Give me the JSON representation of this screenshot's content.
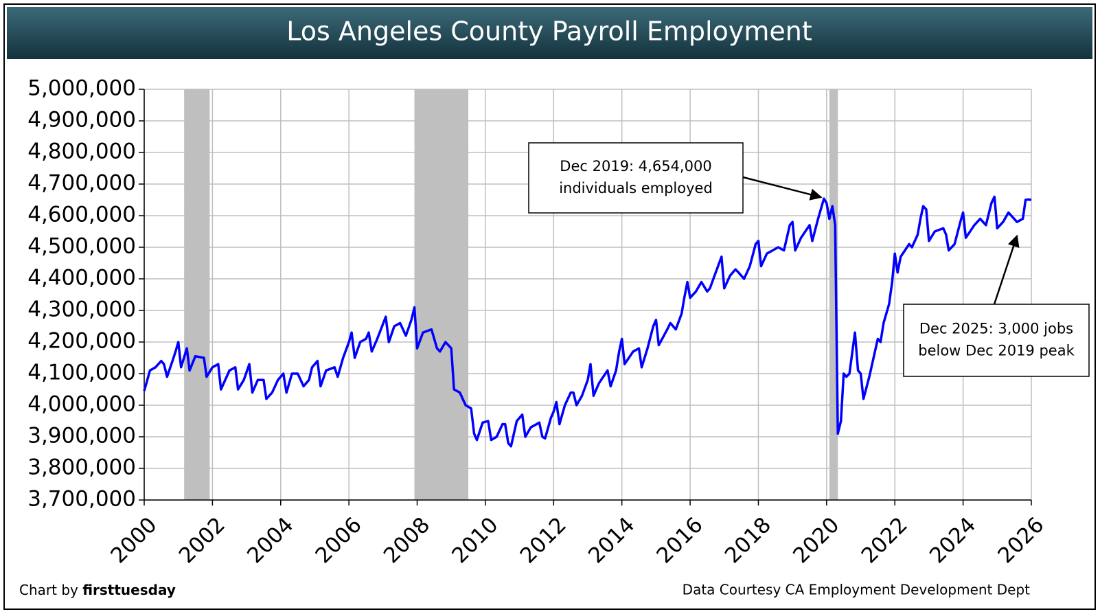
{
  "chart_data": {
    "type": "line",
    "title": "Los Angeles County Payroll Employment",
    "credit_prefix": "Chart by",
    "credit_name": "firsttuesday",
    "source": "Data Courtesy CA Employment Development Dept",
    "color": "#0000ff",
    "grid": true,
    "shaded_regions": [
      [
        2001.17,
        2001.92
      ],
      [
        2007.92,
        2009.5
      ],
      [
        2020.08,
        2020.33
      ]
    ],
    "shade_color": "#bfbfbf",
    "xlim": [
      2000,
      2026
    ],
    "xticks": [
      2000,
      2002,
      2004,
      2006,
      2008,
      2010,
      2012,
      2014,
      2016,
      2018,
      2020,
      2022,
      2024,
      2026
    ],
    "ylim": [
      3700000,
      5000000
    ],
    "yticks": [
      {
        "value": 3700000,
        "label": "3,700,000"
      },
      {
        "value": 3800000,
        "label": "3,800,000"
      },
      {
        "value": 3900000,
        "label": "3,900,000"
      },
      {
        "value": 4000000,
        "label": "4,000,000"
      },
      {
        "value": 4100000,
        "label": "4,100,000"
      },
      {
        "value": 4200000,
        "label": "4,200,000"
      },
      {
        "value": 4300000,
        "label": "4,300,000"
      },
      {
        "value": 4400000,
        "label": "4,400,000"
      },
      {
        "value": 4500000,
        "label": "4,500,000"
      },
      {
        "value": 4600000,
        "label": "4,600,000"
      },
      {
        "value": 4700000,
        "label": "4,700,000"
      },
      {
        "value": 4800000,
        "label": "4,800,000"
      },
      {
        "value": 4900000,
        "label": "4,900,000"
      },
      {
        "value": 5000000,
        "label": "5,000,000"
      }
    ],
    "x": [
      2000.0,
      2000.17,
      2000.33,
      2000.5,
      2000.58,
      2000.67,
      2000.83,
      2000.92,
      2001.0,
      2001.08,
      2001.25,
      2001.33,
      2001.5,
      2001.75,
      2001.83,
      2002.0,
      2002.17,
      2002.25,
      2002.5,
      2002.67,
      2002.75,
      2002.92,
      2003.08,
      2003.17,
      2003.33,
      2003.5,
      2003.58,
      2003.75,
      2003.92,
      2004.08,
      2004.17,
      2004.33,
      2004.5,
      2004.67,
      2004.83,
      2004.92,
      2005.08,
      2005.17,
      2005.33,
      2005.58,
      2005.67,
      2005.83,
      2006.0,
      2006.08,
      2006.17,
      2006.33,
      2006.5,
      2006.58,
      2006.67,
      2006.83,
      2007.08,
      2007.17,
      2007.33,
      2007.5,
      2007.67,
      2007.83,
      2007.92,
      2008.0,
      2008.17,
      2008.42,
      2008.58,
      2008.67,
      2008.83,
      2009.0,
      2009.08,
      2009.25,
      2009.42,
      2009.58,
      2009.67,
      2009.75,
      2009.92,
      2010.08,
      2010.17,
      2010.33,
      2010.5,
      2010.58,
      2010.67,
      2010.75,
      2010.92,
      2011.08,
      2011.17,
      2011.33,
      2011.5,
      2011.58,
      2011.67,
      2011.75,
      2011.92,
      2012.0,
      2012.08,
      2012.17,
      2012.33,
      2012.5,
      2012.58,
      2012.67,
      2012.83,
      2013.0,
      2013.08,
      2013.17,
      2013.33,
      2013.58,
      2013.67,
      2013.83,
      2013.92,
      2014.0,
      2014.08,
      2014.33,
      2014.5,
      2014.58,
      2014.75,
      2014.92,
      2015.0,
      2015.08,
      2015.33,
      2015.42,
      2015.58,
      2015.75,
      2015.83,
      2015.92,
      2016.0,
      2016.17,
      2016.33,
      2016.5,
      2016.58,
      2016.75,
      2016.92,
      2017.0,
      2017.17,
      2017.33,
      2017.42,
      2017.58,
      2017.75,
      2017.92,
      2018.0,
      2018.08,
      2018.25,
      2018.42,
      2018.58,
      2018.75,
      2018.92,
      2019.0,
      2019.08,
      2019.25,
      2019.5,
      2019.58,
      2019.75,
      2019.92,
      2020.0,
      2020.08,
      2020.17,
      2020.25,
      2020.33,
      2020.42,
      2020.5,
      2020.58,
      2020.67,
      2020.83,
      2020.92,
      2021.0,
      2021.08,
      2021.25,
      2021.5,
      2021.58,
      2021.67,
      2021.83,
      2021.92,
      2022.0,
      2022.08,
      2022.17,
      2022.42,
      2022.5,
      2022.67,
      2022.75,
      2022.83,
      2022.92,
      2023.0,
      2023.17,
      2023.42,
      2023.5,
      2023.58,
      2023.75,
      2023.92,
      2024.0,
      2024.08,
      2024.33,
      2024.5,
      2024.67,
      2024.83,
      2024.92,
      2025.0,
      2025.17,
      2025.33,
      2025.58,
      2025.75,
      2025.83,
      2025.92,
      2026.0
    ],
    "values": [
      4045000,
      4110000,
      4120000,
      4140000,
      4130000,
      4090000,
      4140000,
      4170000,
      4200000,
      4120000,
      4180000,
      4110000,
      4155000,
      4150000,
      4090000,
      4120000,
      4130000,
      4050000,
      4110000,
      4120000,
      4050000,
      4080000,
      4130000,
      4040000,
      4080000,
      4080000,
      4020000,
      4040000,
      4080000,
      4100000,
      4040000,
      4100000,
      4100000,
      4060000,
      4080000,
      4120000,
      4140000,
      4060000,
      4110000,
      4120000,
      4090000,
      4150000,
      4200000,
      4230000,
      4150000,
      4200000,
      4210000,
      4230000,
      4170000,
      4210000,
      4280000,
      4200000,
      4250000,
      4260000,
      4220000,
      4270000,
      4310000,
      4180000,
      4230000,
      4240000,
      4180000,
      4170000,
      4200000,
      4180000,
      4050000,
      4040000,
      4000000,
      3990000,
      3910000,
      3890000,
      3945000,
      3950000,
      3890000,
      3900000,
      3940000,
      3940000,
      3880000,
      3870000,
      3950000,
      3970000,
      3900000,
      3930000,
      3940000,
      3945000,
      3900000,
      3895000,
      3960000,
      3980000,
      4010000,
      3940000,
      4000000,
      4040000,
      4040000,
      4000000,
      4030000,
      4080000,
      4130000,
      4030000,
      4070000,
      4110000,
      4060000,
      4110000,
      4170000,
      4210000,
      4130000,
      4170000,
      4180000,
      4120000,
      4180000,
      4250000,
      4270000,
      4190000,
      4240000,
      4260000,
      4240000,
      4290000,
      4340000,
      4390000,
      4340000,
      4360000,
      4390000,
      4360000,
      4370000,
      4420000,
      4470000,
      4370000,
      4410000,
      4430000,
      4420000,
      4400000,
      4440000,
      4510000,
      4520000,
      4440000,
      4480000,
      4490000,
      4500000,
      4490000,
      4570000,
      4580000,
      4490000,
      4530000,
      4570000,
      4520000,
      4590000,
      4654000,
      4640000,
      4590000,
      4630000,
      4570000,
      3910000,
      3950000,
      4100000,
      4090000,
      4100000,
      4230000,
      4110000,
      4100000,
      4020000,
      4090000,
      4210000,
      4200000,
      4260000,
      4320000,
      4390000,
      4480000,
      4420000,
      4470000,
      4510000,
      4500000,
      4540000,
      4590000,
      4630000,
      4620000,
      4520000,
      4550000,
      4560000,
      4540000,
      4490000,
      4510000,
      4580000,
      4610000,
      4530000,
      4570000,
      4590000,
      4570000,
      4640000,
      4660000,
      4560000,
      4580000,
      4610000,
      4580000,
      4590000,
      4650000,
      4651000,
      4650000
    ],
    "annotations": [
      {
        "text": [
          "Dec 2019: 4,654,000",
          "individuals employed"
        ],
        "x": 2019.92,
        "y": 4654000
      },
      {
        "text": [
          "Dec 2025: 3,000 jobs",
          "below Dec 2019 peak"
        ],
        "x": 2025.58,
        "y": 4545000
      }
    ]
  }
}
